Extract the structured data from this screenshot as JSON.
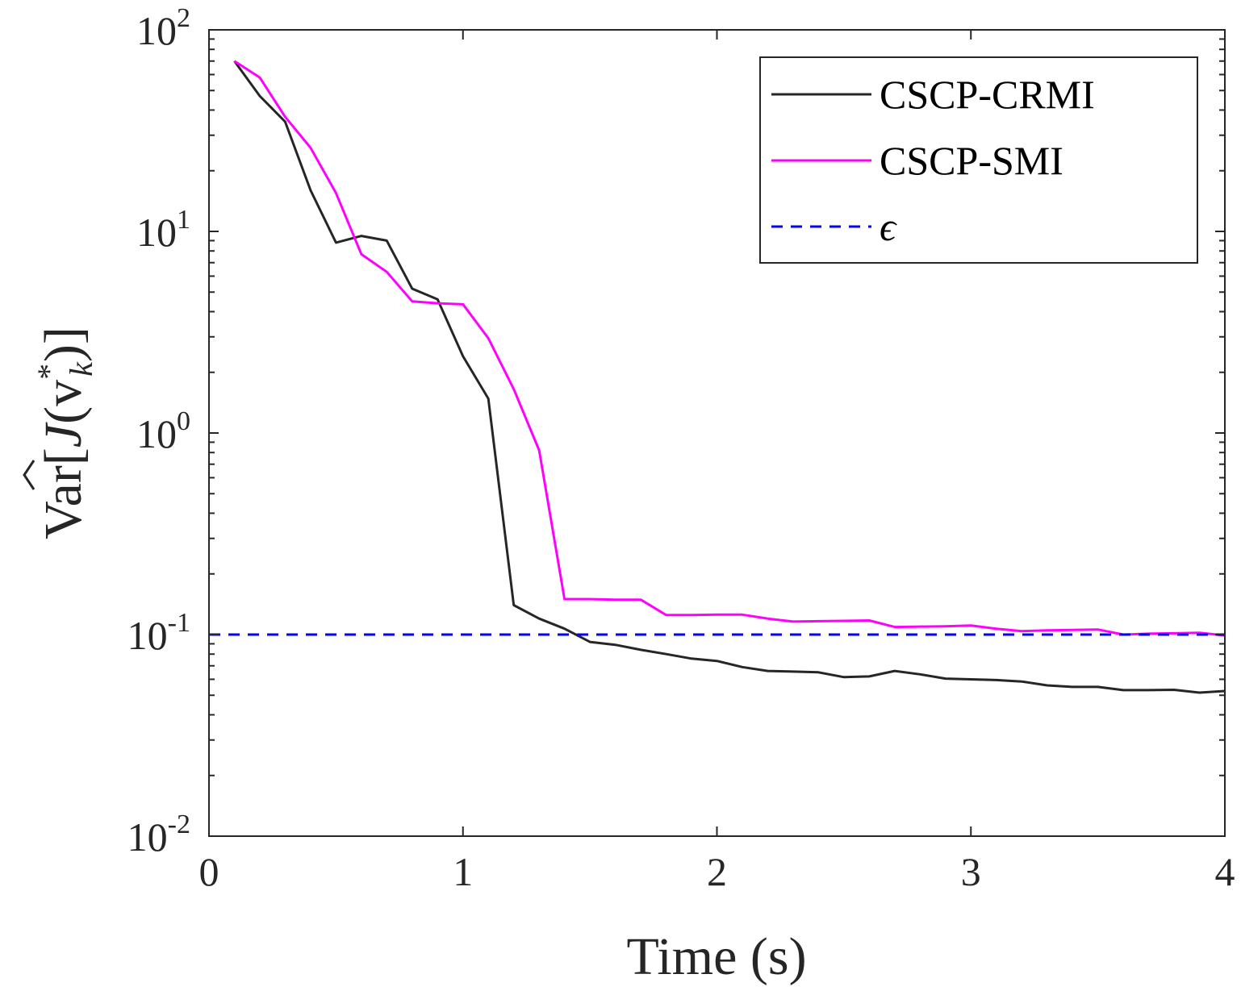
{
  "chart_data": {
    "type": "line",
    "xlabel": "Time (s)",
    "ylabel": {
      "prefix": "Var[",
      "symbol": "J",
      "args": "(v",
      "sup": "*",
      "sub": "k",
      "suffix": ")]"
    },
    "xlim": [
      0,
      4
    ],
    "ylim": [
      0.01,
      100
    ],
    "yscale": "log",
    "grid": false,
    "legend_position": "top-right",
    "x_ticks": [
      "0",
      "1",
      "2",
      "3",
      "4"
    ],
    "y_ticks": [
      {
        "base": "10",
        "exp": "-2"
      },
      {
        "base": "10",
        "exp": "-1"
      },
      {
        "base": "10",
        "exp": "0"
      },
      {
        "base": "10",
        "exp": "1"
      },
      {
        "base": "10",
        "exp": "2"
      }
    ],
    "series": [
      {
        "name": "CSCP-CRMI",
        "color": "#262626",
        "style": "solid",
        "x": [
          0.1,
          0.2,
          0.3,
          0.4,
          0.5,
          0.6,
          0.7,
          0.8,
          0.9,
          1.0,
          1.1,
          1.2,
          1.3,
          1.4,
          1.5,
          1.6,
          1.7,
          1.8,
          1.9,
          2.0,
          2.1,
          2.2,
          2.3,
          2.4,
          2.5,
          2.6,
          2.7,
          2.8,
          2.9,
          3.0,
          3.1,
          3.2,
          3.3,
          3.4,
          3.5,
          3.6,
          3.7,
          3.8,
          3.9,
          4.0
        ],
        "y": [
          70,
          47,
          35,
          16,
          8.8,
          9.5,
          9.0,
          5.2,
          4.6,
          2.4,
          1.48,
          0.14,
          0.12,
          0.107,
          0.092,
          0.089,
          0.084,
          0.08,
          0.076,
          0.074,
          0.069,
          0.066,
          0.0655,
          0.065,
          0.0615,
          0.062,
          0.066,
          0.0635,
          0.0605,
          0.06,
          0.0595,
          0.0585,
          0.056,
          0.055,
          0.055,
          0.053,
          0.053,
          0.0532,
          0.0515,
          0.0525
        ]
      },
      {
        "name": "CSCP-SMI",
        "color": "#ff00ff",
        "style": "solid",
        "x": [
          0.1,
          0.2,
          0.3,
          0.4,
          0.5,
          0.6,
          0.7,
          0.8,
          0.9,
          1.0,
          1.1,
          1.2,
          1.3,
          1.4,
          1.5,
          1.6,
          1.7,
          1.8,
          1.9,
          2.0,
          2.1,
          2.2,
          2.3,
          2.4,
          2.5,
          2.6,
          2.7,
          2.8,
          2.9,
          3.0,
          3.1,
          3.2,
          3.3,
          3.4,
          3.5,
          3.6,
          3.7,
          3.8,
          3.9,
          4.0
        ],
        "y": [
          70,
          58,
          37,
          26,
          15.5,
          7.7,
          6.3,
          4.5,
          4.4,
          4.35,
          2.95,
          1.65,
          0.82,
          0.15,
          0.15,
          0.149,
          0.149,
          0.125,
          0.125,
          0.1255,
          0.1255,
          0.12,
          0.116,
          0.1165,
          0.117,
          0.1175,
          0.109,
          0.1095,
          0.11,
          0.111,
          0.107,
          0.104,
          0.105,
          0.1055,
          0.106,
          0.1,
          0.101,
          0.1015,
          0.102,
          0.099
        ]
      },
      {
        "name": "ϵ",
        "color": "#0000ff",
        "style": "dashed",
        "x": [
          0,
          4
        ],
        "y": [
          0.1,
          0.1
        ]
      }
    ]
  }
}
